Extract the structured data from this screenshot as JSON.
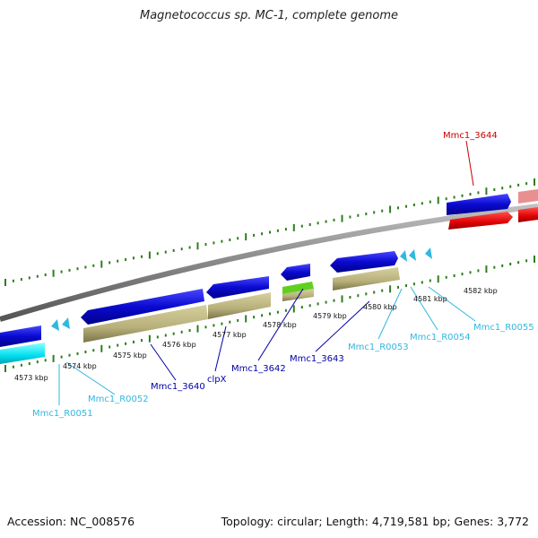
{
  "title": "Magnetococcus sp. MC-1, complete genome",
  "footer": {
    "accession": "Accession: NC_008576",
    "stats": "Topology: circular; Length: 4,719,581 bp; Genes: 3,772"
  },
  "kbp_labels": [
    "4573 kbp",
    "4574 kbp",
    "4575 kbp",
    "4576 kbp",
    "4577 kbp",
    "4578 kbp",
    "4579 kbp",
    "4580 kbp",
    "4581 kbp",
    "4582 kbp"
  ],
  "gene_labels": {
    "mmc1_3644": "Mmc1_3644",
    "mmc1_3640": "Mmc1_3640",
    "clpx": "clpX",
    "mmc1_3642": "Mmc1_3642",
    "mmc1_3643": "Mmc1_3643",
    "r0051": "Mmc1_R0051",
    "r0052": "Mmc1_R0052",
    "r0053": "Mmc1_R0053",
    "r0054": "Mmc1_R0054",
    "r0055": "Mmc1_R0055"
  },
  "colors": {
    "backbone": "#888888",
    "tick": "#2e7d1e",
    "cds_forward": "#0a0ad0",
    "gene_bar": "#b8b07a",
    "selected": "#e00000",
    "selected_light": "#e89090",
    "trna": "#00e0f0",
    "misc": "#60d020",
    "label_cds": "#0000aa",
    "label_rna": "#30b8e0",
    "label_selected": "#cc0000"
  }
}
